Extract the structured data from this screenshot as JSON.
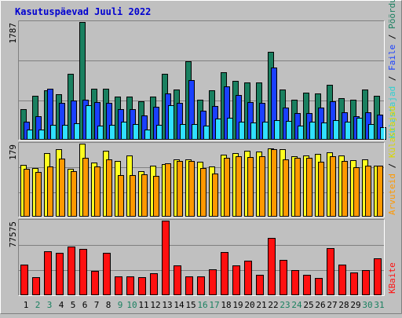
{
  "chart_data": [
    {
      "type": "bar",
      "title": "Kasutuspäevad Juuli 2022",
      "categories": [
        "1",
        "2",
        "3",
        "4",
        "5",
        "6",
        "7",
        "8",
        "9",
        "10",
        "11",
        "12",
        "13",
        "14",
        "15",
        "16",
        "17",
        "18",
        "19",
        "20",
        "21",
        "22",
        "23",
        "24",
        "25",
        "26",
        "27",
        "28",
        "29",
        "30",
        "31"
      ],
      "weekend_days": [
        "2",
        "3",
        "9",
        "10",
        "16",
        "17",
        "23",
        "24",
        "30",
        "31"
      ],
      "ytick_label": "1787",
      "ylim": [
        0,
        1787
      ],
      "ylabel_parts": [
        "Külastajad",
        "Faile",
        "Pöördumisi"
      ],
      "series": [
        {
          "name": "Pöördumisi",
          "color": "#1a8060",
          "values": [
            460,
            670,
            750,
            690,
            1000,
            1787,
            780,
            780,
            660,
            660,
            580,
            660,
            1000,
            760,
            1190,
            610,
            750,
            1030,
            890,
            870,
            870,
            1340,
            760,
            610,
            710,
            700,
            830,
            630,
            610,
            760,
            670
          ]
        },
        {
          "name": "Faile",
          "color": "#1a40ff",
          "values": [
            270,
            360,
            780,
            560,
            590,
            610,
            570,
            560,
            470,
            470,
            370,
            500,
            700,
            560,
            910,
            440,
            510,
            810,
            680,
            570,
            560,
            1100,
            490,
            400,
            410,
            490,
            580,
            420,
            360,
            420,
            380
          ]
        },
        {
          "name": "Külastajad",
          "color": "#30e0ff",
          "values": [
            160,
            160,
            230,
            230,
            250,
            530,
            220,
            230,
            270,
            240,
            150,
            230,
            520,
            240,
            240,
            210,
            320,
            330,
            270,
            260,
            270,
            300,
            280,
            220,
            270,
            260,
            300,
            270,
            330,
            240,
            190
          ]
        }
      ]
    },
    {
      "type": "bar",
      "ytick_label": "179",
      "ylim": [
        0,
        179
      ],
      "ylabel_parts": [
        "Arvuteid",
        "Külastajad"
      ],
      "series": [
        {
          "name": "Külastajad",
          "color": "#ffff20",
          "values": [
            127,
            120,
            155,
            165,
            118,
            179,
            132,
            161,
            137,
            150,
            111,
            126,
            128,
            141,
            140,
            134,
            123,
            153,
            155,
            162,
            160,
            168,
            165,
            148,
            150,
            154,
            157,
            150,
            138,
            140,
            126
          ]
        },
        {
          "name": "Arvuteid",
          "color": "#ff9900",
          "values": [
            117,
            110,
            123,
            142,
            112,
            145,
            124,
            141,
            102,
            102,
            104,
            101,
            131,
            136,
            137,
            120,
            106,
            145,
            148,
            146,
            148,
            166,
            141,
            145,
            144,
            134,
            148,
            137,
            122,
            126,
            125
          ]
        }
      ]
    },
    {
      "type": "bar",
      "ytick_label": "77575",
      "ylim": [
        0,
        77575
      ],
      "ylabel_parts": [
        "KBaite"
      ],
      "series": [
        {
          "name": "KBaite",
          "color": "#ff1010",
          "values": [
            32000,
            19000,
            46000,
            44000,
            51000,
            48000,
            25000,
            44000,
            20000,
            20000,
            19000,
            23000,
            77575,
            31000,
            20000,
            20000,
            27000,
            45000,
            31000,
            36000,
            21000,
            60000,
            37000,
            26000,
            21000,
            18000,
            49000,
            32000,
            24000,
            26000,
            38000
          ]
        }
      ]
    }
  ]
}
